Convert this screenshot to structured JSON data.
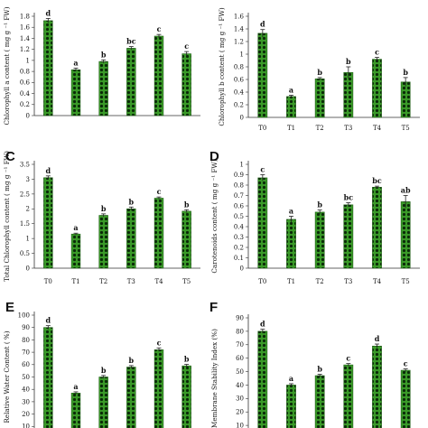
{
  "bar_fill": "#3a9a28",
  "bar_pattern_dot": "#0a2a08",
  "bar_edge": "#1f5e16",
  "error_bar_color": "#222222",
  "chart_data": [
    {
      "panel": "",
      "type": "bar",
      "ylabel": "Chlorophyll a content ( mg g ⁻¹ FW)",
      "categories": [
        "T0",
        "T1",
        "T2",
        "T3",
        "T4",
        "T5"
      ],
      "values": [
        1.72,
        0.83,
        0.98,
        1.22,
        1.44,
        1.12
      ],
      "errors": [
        0.04,
        0.03,
        0.03,
        0.03,
        0.03,
        0.04
      ],
      "significance": [
        "d",
        "a",
        "b",
        "bc",
        "c",
        "c"
      ],
      "ylim": [
        0.0,
        1.8
      ],
      "yticks": [
        "0",
        "0.2",
        "0.4",
        "0.6",
        "0.8",
        "1",
        "1.2",
        "1.4",
        "1.6",
        "1.8"
      ],
      "ytick_values": [
        0.0,
        0.2,
        0.4,
        0.6,
        0.8,
        1.0,
        1.2,
        1.4,
        1.6,
        1.8
      ],
      "show_x_tick_labels": false
    },
    {
      "panel": "",
      "type": "bar",
      "ylabel": "Chlorophyll b content ( mg g ⁻¹ FW)",
      "categories": [
        "T0",
        "T1",
        "T2",
        "T3",
        "T4",
        "T5"
      ],
      "values": [
        1.33,
        0.33,
        0.61,
        0.71,
        0.92,
        0.56
      ],
      "errors": [
        0.06,
        0.02,
        0.02,
        0.09,
        0.03,
        0.07
      ],
      "significance": [
        "d",
        "a",
        "b",
        "b",
        "c",
        "b"
      ],
      "ylim": [
        0.0,
        1.6
      ],
      "yticks": [
        "0",
        "0.2",
        "0.4",
        "0.6",
        "0.8",
        "1",
        "1.2",
        "1.4",
        "1.6"
      ],
      "ytick_values": [
        0.0,
        0.2,
        0.4,
        0.6,
        0.8,
        1.0,
        1.2,
        1.4,
        1.6
      ],
      "show_x_tick_labels": true
    },
    {
      "panel": "C",
      "type": "bar",
      "ylabel": "Total Chlorophyll content ( mg g ⁻¹ FW)",
      "categories": [
        "T0",
        "T1",
        "T2",
        "T3",
        "T4",
        "T5"
      ],
      "values": [
        3.05,
        1.15,
        1.78,
        2.0,
        2.36,
        1.92
      ],
      "errors": [
        0.06,
        0.03,
        0.05,
        0.06,
        0.04,
        0.05
      ],
      "significance": [
        "d",
        "a",
        "b",
        "b",
        "c",
        "b"
      ],
      "ylim": [
        0.0,
        3.5
      ],
      "yticks": [
        "0",
        "0.5",
        "1",
        "1.5",
        "2",
        "2.5",
        "3",
        "3.5"
      ],
      "ytick_values": [
        0.0,
        0.5,
        1.0,
        1.5,
        2.0,
        2.5,
        3.0,
        3.5
      ],
      "show_x_tick_labels": true
    },
    {
      "panel": "D",
      "type": "bar",
      "ylabel": "Carotenoids content ( mg g ⁻¹ FW)",
      "categories": [
        "T0",
        "T1",
        "T2",
        "T3",
        "T4",
        "T5"
      ],
      "values": [
        0.87,
        0.47,
        0.54,
        0.61,
        0.78,
        0.64
      ],
      "errors": [
        0.03,
        0.03,
        0.02,
        0.02,
        0.01,
        0.06
      ],
      "significance": [
        "c",
        "a",
        "b",
        "bc",
        "bc",
        "ab"
      ],
      "ylim": [
        0.0,
        1.0
      ],
      "yticks": [
        "0",
        "0.1",
        "0.2",
        "0.3",
        "0.4",
        "0.5",
        "0.6",
        "0.7",
        "0.8",
        "0.9",
        "1"
      ],
      "ytick_values": [
        0.0,
        0.1,
        0.2,
        0.3,
        0.4,
        0.5,
        0.6,
        0.7,
        0.8,
        0.9,
        1.0
      ],
      "show_x_tick_labels": true
    },
    {
      "panel": "E",
      "type": "bar",
      "ylabel": "Relative Water Content ( %)",
      "categories": [
        "T0",
        "T1",
        "T2",
        "T3",
        "T4",
        "T5"
      ],
      "values": [
        90,
        37,
        50,
        58,
        72,
        59
      ],
      "errors": [
        1.5,
        1.0,
        1.2,
        1.2,
        1.5,
        1.2
      ],
      "significance": [
        "d",
        "a",
        "b",
        "b",
        "c",
        "b"
      ],
      "ylim": [
        0,
        100
      ],
      "yticks": [
        "0",
        "10",
        "20",
        "30",
        "40",
        "50",
        "60",
        "70",
        "80",
        "90",
        "100"
      ],
      "ytick_values": [
        0,
        10,
        20,
        30,
        40,
        50,
        60,
        70,
        80,
        90,
        100
      ],
      "show_x_tick_labels": false
    },
    {
      "panel": "F",
      "type": "bar",
      "ylabel": "Membrane Stability Index (%)",
      "categories": [
        "T0",
        "T1",
        "T2",
        "T3",
        "T4",
        "T5"
      ],
      "values": [
        80,
        40,
        47,
        55,
        69,
        51
      ],
      "errors": [
        1.5,
        1.0,
        1.0,
        1.0,
        1.5,
        1.0
      ],
      "significance": [
        "d",
        "a",
        "b",
        "c",
        "d",
        "c"
      ],
      "ylim": [
        0,
        90
      ],
      "yticks": [
        "0",
        "10",
        "20",
        "30",
        "40",
        "50",
        "60",
        "70",
        "80",
        "90"
      ],
      "ytick_values": [
        0,
        10,
        20,
        30,
        40,
        50,
        60,
        70,
        80,
        90
      ],
      "show_x_tick_labels": false
    }
  ]
}
